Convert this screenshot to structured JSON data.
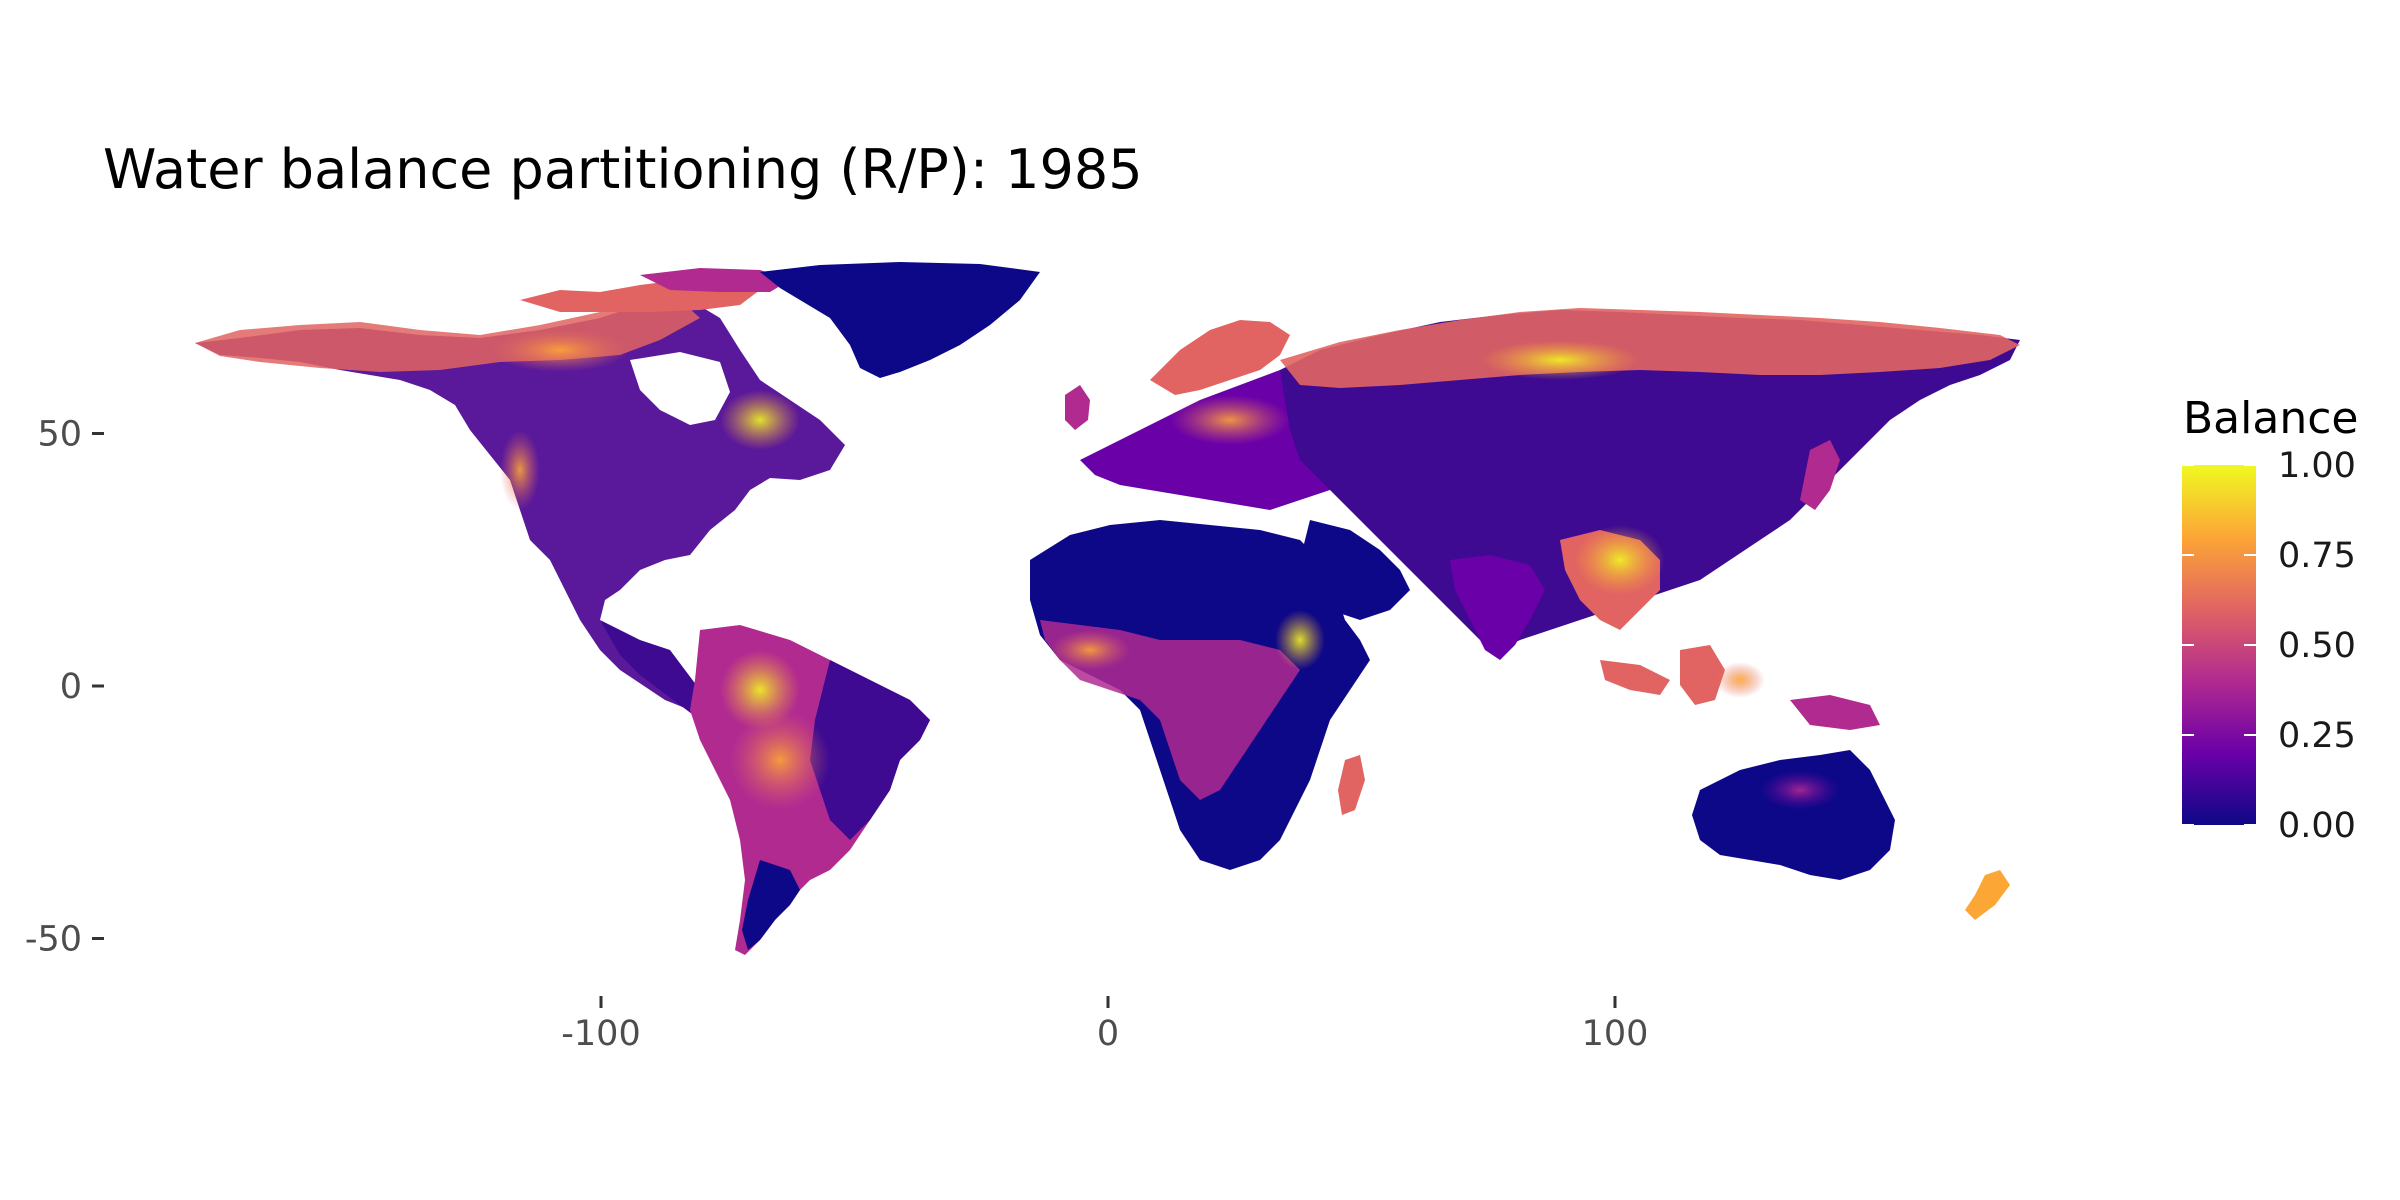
{
  "title": "Water balance partitioning (R/P): 1985",
  "legend": {
    "title": "Balance",
    "ticks": [
      {
        "value": 1.0,
        "label": "1.00"
      },
      {
        "value": 0.75,
        "label": "0.75"
      },
      {
        "value": 0.5,
        "label": "0.50"
      },
      {
        "value": 0.25,
        "label": "0.25"
      },
      {
        "value": 0.0,
        "label": "0.00"
      }
    ],
    "colormap": "plasma",
    "colors": [
      "#0d0887",
      "#6a00a8",
      "#b12a90",
      "#e16462",
      "#fca636",
      "#f0f921"
    ]
  },
  "axes": {
    "x_ticks": [
      {
        "value": -100,
        "label": "-100"
      },
      {
        "value": 0,
        "label": "0"
      },
      {
        "value": 100,
        "label": "100"
      }
    ],
    "y_ticks": [
      {
        "value": 50,
        "label": "50"
      },
      {
        "value": 0,
        "label": "0"
      },
      {
        "value": -50,
        "label": "-50"
      }
    ],
    "x_range": [
      -180,
      180
    ],
    "y_range": [
      -56,
      83
    ],
    "grid": false
  },
  "map": {
    "variable": "R/P",
    "year": "1985",
    "regions": [
      {
        "name": "North America",
        "balance": 0.3
      },
      {
        "name": "Greenland",
        "balance": 0.0
      },
      {
        "name": "South America",
        "balance": 0.55
      },
      {
        "name": "Europe",
        "balance": 0.45
      },
      {
        "name": "Asia",
        "balance": 0.3
      },
      {
        "name": "Africa",
        "balance": 0.05
      },
      {
        "name": "Australia",
        "balance": 0.08
      }
    ]
  }
}
